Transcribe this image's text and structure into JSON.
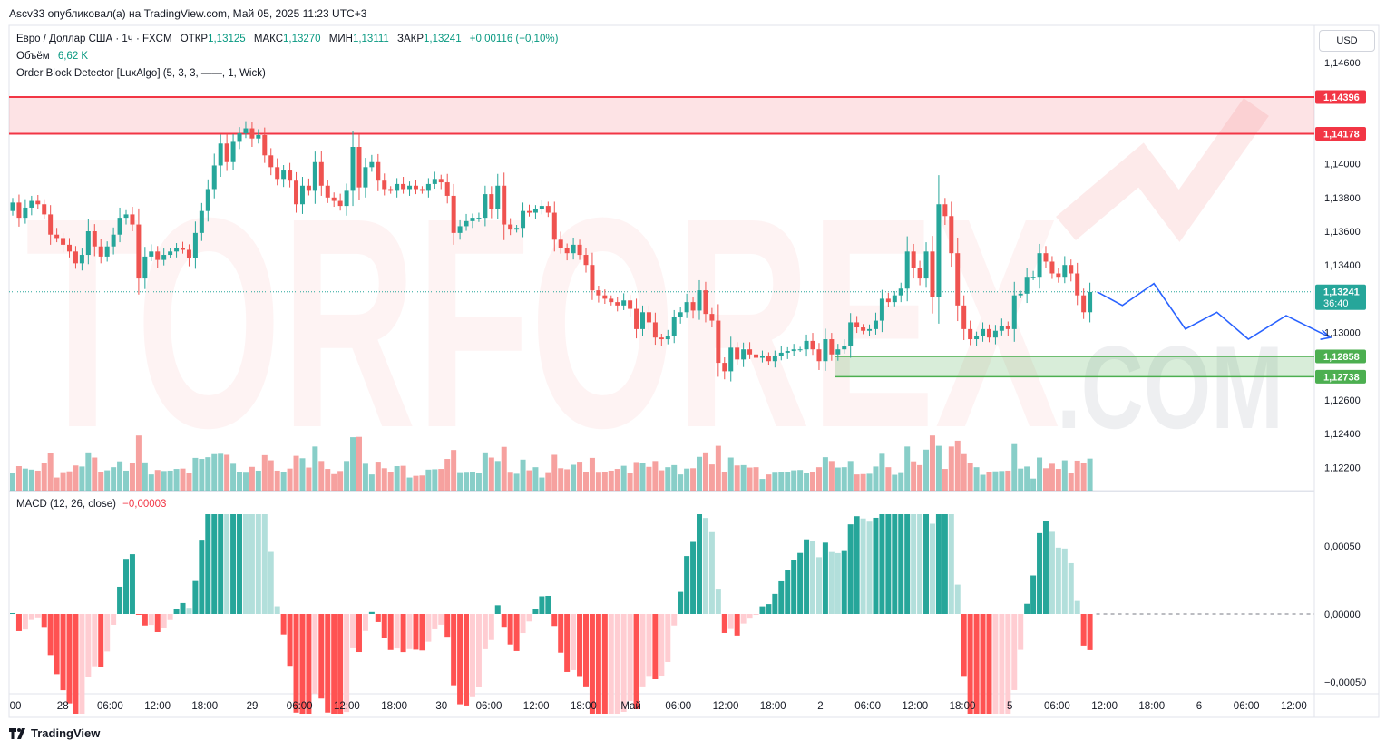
{
  "header": {
    "published": "Ascv33 опубликовал(а) на TradingView.com, Май 05, 2025 11:23 UTC+3"
  },
  "legend": {
    "symbol": "Евро / Доллар США · 1ч · FXCM",
    "open_label": "ОТКР",
    "open": "1,13125",
    "high_label": "МАКС",
    "high": "1,13270",
    "low_label": "МИН",
    "low": "1,13111",
    "close_label": "ЗАКР",
    "close": "1,13241",
    "change": "+0,00116 (+0,10%)",
    "volume_label": "Объём",
    "volume": "6,62 K",
    "indicator": "Order Block Detector [LuxAlgo] (5, 3, 3, ——, 1, Wick)"
  },
  "macd_legend": {
    "label": "MACD (12, 26, close)",
    "value": "−0,00003"
  },
  "currency_button": "USD",
  "footer": {
    "brand": "TradingView"
  },
  "watermark": {
    "big": "TORFOREX",
    "small": ".COM"
  },
  "colors": {
    "up": "#26a69a",
    "down": "#ef5350",
    "resistance": "#f23645",
    "support": "#4caf50",
    "forecast": "#2962ff"
  },
  "chart_data": {
    "type": "candlestick",
    "price_axis": {
      "ticks": [
        1.146,
        1.144,
        1.142,
        1.14,
        1.138,
        1.136,
        1.134,
        1.132,
        1.13,
        1.128,
        1.126,
        1.124,
        1.122
      ],
      "tick_labels": [
        "1,14600",
        "",
        "",
        "1,14000",
        "1,13800",
        "1,13600",
        "1,13400",
        "",
        "1,13000",
        "",
        "1,12600",
        "1,12400",
        "1,12200"
      ],
      "range": [
        1.121,
        1.147
      ]
    },
    "time_axis": {
      "labels": [
        "00",
        "28",
        "06:00",
        "12:00",
        "18:00",
        "29",
        "06:00",
        "12:00",
        "18:00",
        "30",
        "06:00",
        "12:00",
        "18:00",
        "Май",
        "06:00",
        "12:00",
        "18:00",
        "2",
        "06:00",
        "12:00",
        "18:00",
        "5",
        "06:00",
        "12:00",
        "18:00",
        "6",
        "06:00",
        "12:00"
      ]
    },
    "price_badges": [
      {
        "label": "1,14396",
        "value": 1.14396,
        "color": "#f23645"
      },
      {
        "label": "1,14178",
        "value": 1.14178,
        "color": "#f23645"
      },
      {
        "label": "1,13241",
        "sublabel": "36:40",
        "value": 1.13241,
        "color": "#26a69a"
      },
      {
        "label": "1,12858",
        "value": 1.12858,
        "color": "#4caf50"
      },
      {
        "label": "1,12738",
        "value": 1.12738,
        "color": "#4caf50"
      }
    ],
    "zones": [
      {
        "name": "bearish-order-block",
        "top": 1.14396,
        "bottom": 1.14178,
        "start_index": 0
      },
      {
        "name": "bullish-order-block",
        "top": 1.12858,
        "bottom": 1.12738,
        "start_index": 131
      }
    ],
    "last_price": 1.13241,
    "closes": [
      1.1377,
      1.1368,
      1.1374,
      1.1378,
      1.1376,
      1.137,
      1.1358,
      1.1356,
      1.1352,
      1.1348,
      1.1341,
      1.1346,
      1.136,
      1.1351,
      1.1345,
      1.1351,
      1.1358,
      1.1368,
      1.137,
      1.1364,
      1.1332,
      1.1345,
      1.1348,
      1.1343,
      1.1346,
      1.1348,
      1.135,
      1.1349,
      1.1344,
      1.1359,
      1.1372,
      1.1385,
      1.1399,
      1.1412,
      1.1401,
      1.1413,
      1.1418,
      1.1421,
      1.1415,
      1.1417,
      1.1405,
      1.1398,
      1.1391,
      1.1396,
      1.139,
      1.1376,
      1.1387,
      1.1384,
      1.1401,
      1.1387,
      1.138,
      1.1378,
      1.1375,
      1.1384,
      1.141,
      1.1386,
      1.1398,
      1.1401,
      1.139,
      1.1385,
      1.1384,
      1.1388,
      1.1385,
      1.1387,
      1.1385,
      1.1384,
      1.1388,
      1.1391,
      1.1389,
      1.1381,
      1.1359,
      1.1363,
      1.1366,
      1.1368,
      1.1368,
      1.1382,
      1.1373,
      1.1387,
      1.1364,
      1.1361,
      1.1362,
      1.1372,
      1.1371,
      1.1373,
      1.1375,
      1.1371,
      1.1355,
      1.135,
      1.1347,
      1.1352,
      1.1346,
      1.134,
      1.1325,
      1.1322,
      1.132,
      1.1318,
      1.1316,
      1.1319,
      1.1314,
      1.1302,
      1.1312,
      1.1306,
      1.1297,
      1.1296,
      1.1298,
      1.1309,
      1.1312,
      1.1318,
      1.1313,
      1.1325,
      1.1311,
      1.1307,
      1.1282,
      1.1277,
      1.1291,
      1.1284,
      1.129,
      1.1287,
      1.1285,
      1.1286,
      1.1283,
      1.1286,
      1.1288,
      1.1289,
      1.129,
      1.129,
      1.1295,
      1.129,
      1.1283,
      1.1296,
      1.1287,
      1.129,
      1.1292,
      1.1306,
      1.1303,
      1.1301,
      1.1302,
      1.1307,
      1.132,
      1.1318,
      1.1322,
      1.1326,
      1.1348,
      1.1338,
      1.1332,
      1.1348,
      1.1321,
      1.1376,
      1.1369,
      1.1347,
      1.1316,
      1.1302,
      1.1296,
      1.1298,
      1.1302,
      1.1297,
      1.1301,
      1.1304,
      1.1302,
      1.1322,
      1.1323,
      1.1333,
      1.1333,
      1.1347,
      1.1342,
      1.1335,
      1.1333,
      1.134,
      1.1335,
      1.1322,
      1.1312,
      1.1324
    ],
    "volume": {
      "label": "Объём",
      "last": "6,62 K"
    },
    "macd": {
      "label": "MACD (12, 26, close)",
      "last": -3e-05,
      "ticks": [
        0.0005,
        0.0,
        -0.0005
      ],
      "tick_labels": [
        "0,00050",
        "0,00000",
        "−0,00050"
      ]
    },
    "forecast_path": [
      [
        0,
        1.13241
      ],
      [
        4,
        1.1316
      ],
      [
        9,
        1.1329
      ],
      [
        14,
        1.1302
      ],
      [
        19,
        1.1312
      ],
      [
        24,
        1.1296
      ],
      [
        30,
        1.131
      ],
      [
        37,
        1.1297
      ]
    ]
  }
}
